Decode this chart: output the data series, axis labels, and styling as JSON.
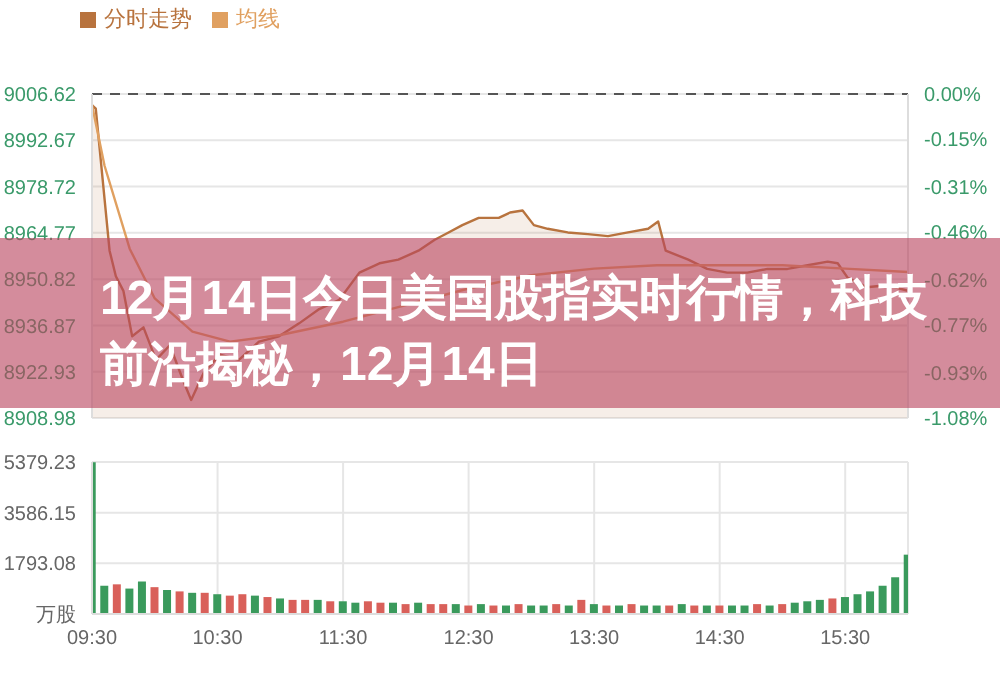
{
  "chart_data": [
    {
      "type": "line",
      "title": "12月14日今日美国股指实时行情，科技前沿揭秘，12月14日",
      "legend": "top left",
      "grid": true,
      "tick_labels": "y",
      "line_style": "solid",
      "xlim": [
        9.5,
        16
      ],
      "xticks": [
        {
          "value": 9.5,
          "label": null
        },
        {
          "value": 10.5,
          "label": null
        },
        {
          "value": 11.5,
          "label": null
        },
        {
          "value": 12.5,
          "label": null
        },
        {
          "value": 13.5,
          "label": null
        },
        {
          "value": 14.5,
          "label": null
        },
        {
          "value": 15.5,
          "label": null
        }
      ],
      "ylim": [
        8908.98,
        9006.62
      ],
      "yticks": [
        8908.98,
        8922.93,
        8936.87,
        8950.82,
        8964.77,
        8978.72,
        8992.67,
        9006.62
      ],
      "y2lim": [
        -1.08,
        0
      ],
      "y2ticks": [
        {
          "value": -1.08,
          "label": "-1.08%"
        },
        {
          "value": -0.93,
          "label": "-0.93%"
        },
        {
          "value": -0.77,
          "label": "-0.77%"
        },
        {
          "value": -0.62,
          "label": "-0.62%"
        },
        {
          "value": -0.46,
          "label": "-0.46%"
        },
        {
          "value": -0.31,
          "label": "-0.31%"
        },
        {
          "value": -0.15,
          "label": "-0.15%"
        },
        {
          "value": 0,
          "label": "0.00%"
        }
      ],
      "ref_lines": [
        {
          "axis": "y",
          "value": 9006.62,
          "line_style": "dashed",
          "color": "#555555"
        }
      ],
      "series": [
        {
          "name": "分时走势",
          "type": "area",
          "color": "#b8733e",
          "x": [
            9.5,
            9.53,
            9.64,
            9.69,
            9.75,
            9.82,
            9.91,
            10.01,
            10.12,
            10.23,
            10.29,
            10.39,
            10.52,
            10.67,
            10.83,
            10.99,
            11.15,
            11.31,
            11.47,
            11.63,
            11.79,
            11.94,
            12.1,
            12.23,
            12.34,
            12.45,
            12.58,
            12.74,
            12.83,
            12.93,
            13.02,
            13.13,
            13.29,
            13.45,
            13.61,
            13.77,
            13.93,
            14.01,
            14.07,
            14.25,
            14.4,
            14.56,
            14.72,
            14.88,
            15.04,
            15.2,
            15.36,
            15.44,
            15.52,
            15.67,
            15.83,
            16
          ],
          "values": [
            9003.3,
            9002.2,
            8959.4,
            8951.7,
            8947.3,
            8933.6,
            8936.3,
            8926.5,
            8930.9,
            8919.9,
            8914.4,
            8922.6,
            8928.1,
            8926.5,
            8932,
            8933.6,
            8937.5,
            8941.8,
            8944.6,
            8952.8,
            8955.6,
            8956.7,
            8959.4,
            8962.7,
            8964.9,
            8967.1,
            8969.3,
            8969.3,
            8970.9,
            8971.5,
            8967.1,
            8966,
            8964.9,
            8964.4,
            8963.8,
            8964.9,
            8966,
            8968.2,
            8959.4,
            8956.7,
            8953.9,
            8952.8,
            8952.8,
            8953.9,
            8953.9,
            8955,
            8956.1,
            8955.6,
            8951.2,
            8948.4,
            8949,
            8947.3
          ]
        },
        {
          "name": "均线",
          "type": "line",
          "color": "#e0a060",
          "x": [
            9.5,
            9.6,
            9.8,
            10,
            10.3,
            10.6,
            11,
            11.5,
            12,
            12.5,
            13,
            13.5,
            14,
            14.5,
            15,
            15.5,
            16
          ],
          "values": [
            9003.3,
            8985,
            8960,
            8945,
            8935,
            8932,
            8934,
            8938,
            8943,
            8948,
            8952,
            8954,
            8955,
            8955,
            8955,
            8954,
            8953
          ]
        }
      ]
    },
    {
      "type": "bar",
      "xlabel": null,
      "grid": true,
      "xlim": [
        9.5,
        16
      ],
      "xticks": [
        {
          "value": 9.5,
          "label": "09:30"
        },
        {
          "value": 10.5,
          "label": "10:30"
        },
        {
          "value": 11.5,
          "label": "11:30"
        },
        {
          "value": 12.5,
          "label": "12:30"
        },
        {
          "value": 13.5,
          "label": "13:30"
        },
        {
          "value": 14.5,
          "label": "14:30"
        },
        {
          "value": 15.5,
          "label": "15:30"
        }
      ],
      "ylim": [
        0,
        5379.23
      ],
      "yticks": [
        {
          "value": 0,
          "label": "万股"
        },
        1793.08,
        3586.15,
        5379.23
      ],
      "x": [
        9.5,
        9.6,
        9.7,
        9.8,
        9.9,
        10,
        10.1,
        10.2,
        10.3,
        10.4,
        10.5,
        10.6,
        10.7,
        10.8,
        10.9,
        11,
        11.1,
        11.2,
        11.3,
        11.4,
        11.5,
        11.6,
        11.7,
        11.8,
        11.9,
        12,
        12.1,
        12.2,
        12.3,
        12.4,
        12.5,
        12.6,
        12.7,
        12.8,
        12.9,
        13,
        13.1,
        13.2,
        13.3,
        13.4,
        13.5,
        13.6,
        13.7,
        13.8,
        13.9,
        14,
        14.1,
        14.2,
        14.3,
        14.4,
        14.5,
        14.6,
        14.7,
        14.8,
        14.9,
        15,
        15.1,
        15.2,
        15.3,
        15.4,
        15.5,
        15.6,
        15.7,
        15.8,
        15.9,
        16
      ],
      "values": [
        5370,
        1000,
        1050,
        900,
        1150,
        950,
        850,
        800,
        750,
        750,
        700,
        650,
        700,
        650,
        600,
        550,
        500,
        500,
        500,
        450,
        450,
        400,
        450,
        400,
        400,
        350,
        400,
        350,
        350,
        350,
        300,
        350,
        300,
        300,
        350,
        300,
        300,
        350,
        300,
        500,
        350,
        300,
        300,
        350,
        300,
        300,
        300,
        350,
        300,
        300,
        300,
        300,
        300,
        350,
        300,
        350,
        400,
        450,
        500,
        550,
        600,
        700,
        800,
        1000,
        1300,
        2100
      ],
      "colors": [
        "#3a9a5c",
        "#3a9a5c",
        "#d9605a",
        "#3a9a5c",
        "#3a9a5c",
        "#d9605a",
        "#3a9a5c",
        "#d9605a",
        "#3a9a5c",
        "#d9605a",
        "#3a9a5c",
        "#d9605a",
        "#d9605a",
        "#3a9a5c",
        "#d9605a",
        "#3a9a5c",
        "#d9605a",
        "#d9605a",
        "#3a9a5c",
        "#d9605a",
        "#3a9a5c",
        "#3a9a5c",
        "#d9605a",
        "#d9605a",
        "#3a9a5c",
        "#d9605a",
        "#3a9a5c",
        "#d9605a",
        "#d9605a",
        "#3a9a5c",
        "#d9605a",
        "#3a9a5c",
        "#d9605a",
        "#3a9a5c",
        "#d9605a",
        "#3a9a5c",
        "#3a9a5c",
        "#d9605a",
        "#3a9a5c",
        "#d9605a",
        "#3a9a5c",
        "#d9605a",
        "#3a9a5c",
        "#d9605a",
        "#3a9a5c",
        "#3a9a5c",
        "#d9605a",
        "#3a9a5c",
        "#d9605a",
        "#3a9a5c",
        "#d9605a",
        "#3a9a5c",
        "#3a9a5c",
        "#d9605a",
        "#3a9a5c",
        "#d9605a",
        "#3a9a5c",
        "#3a9a5c",
        "#3a9a5c",
        "#d9605a",
        "#3a9a5c",
        "#3a9a5c",
        "#3a9a5c",
        "#3a9a5c",
        "#3a9a5c",
        "#3a9a5c"
      ]
    }
  ]
}
